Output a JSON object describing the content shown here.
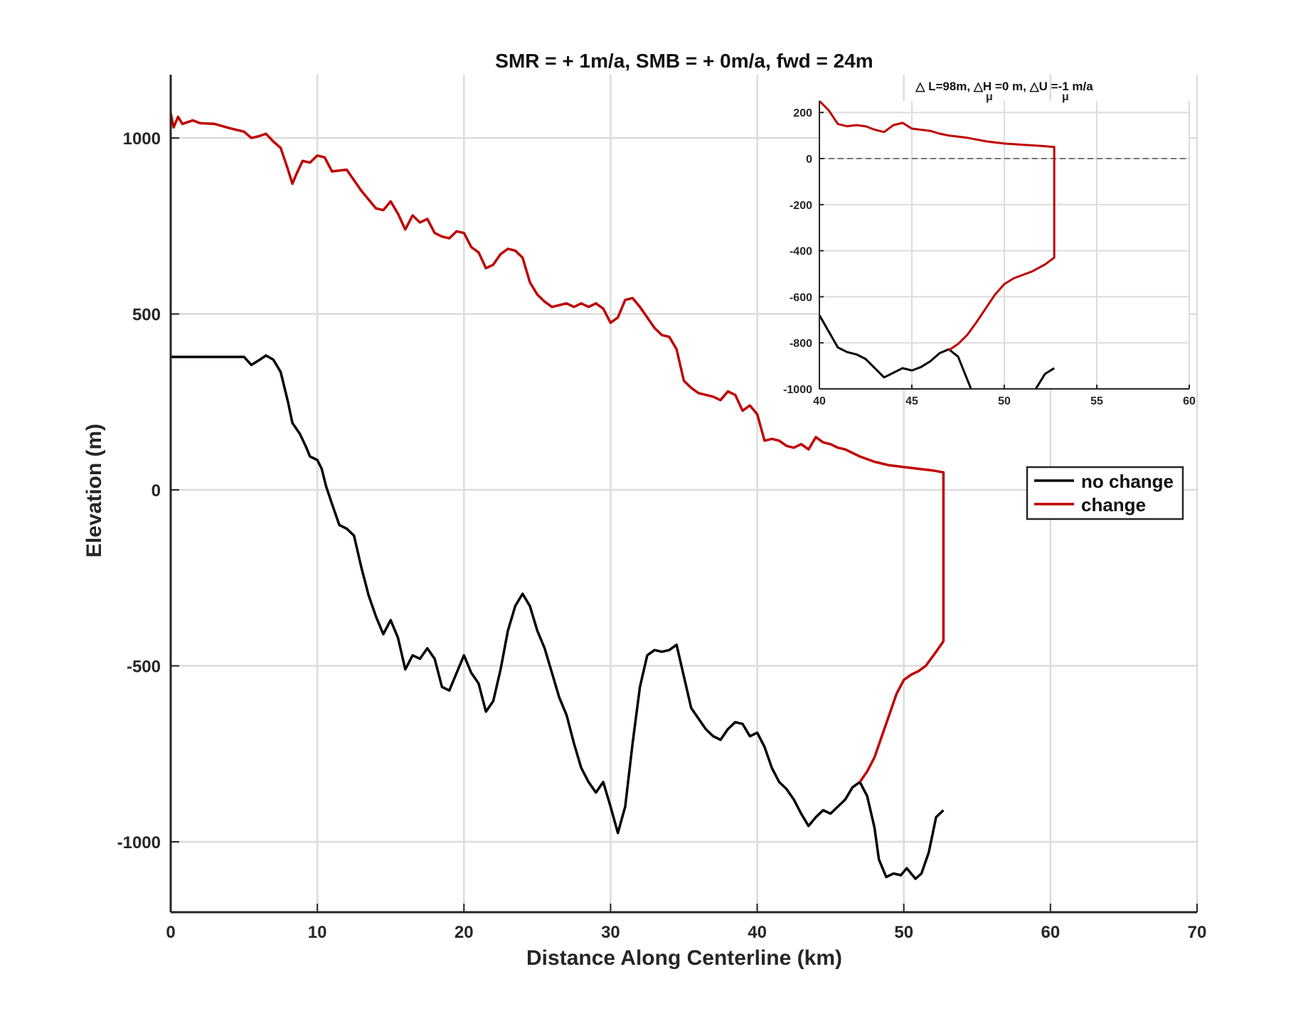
{
  "chart_data": [
    {
      "type": "line",
      "title": "SMR = + 1m/a, SMB = + 0m/a, fwd = 24m",
      "xlabel": "Distance Along Centerline (km)",
      "ylabel": "Elevation (m)",
      "xlim": [
        0,
        70
      ],
      "ylim": [
        -1200,
        1180
      ],
      "xticks": [
        0,
        10,
        20,
        30,
        40,
        50,
        60,
        70
      ],
      "yticks": [
        -1000,
        -500,
        0,
        500,
        1000
      ],
      "grid": true,
      "legend": {
        "placement": "right",
        "entries": [
          "no change",
          "change"
        ]
      },
      "colors": {
        "no_change": "#000000",
        "change": "#c00000"
      },
      "series": [
        {
          "name": "no change",
          "color": "#000000",
          "points": [
            [
              0,
              378
            ],
            [
              5,
              378
            ],
            [
              5.5,
              355
            ],
            [
              6,
              368
            ],
            [
              6.5,
              382
            ],
            [
              7,
              370
            ],
            [
              7.5,
              335
            ],
            [
              8,
              250
            ],
            [
              8.3,
              190
            ],
            [
              8.8,
              160
            ],
            [
              9.2,
              125
            ],
            [
              9.5,
              95
            ],
            [
              10,
              85
            ],
            [
              10.3,
              60
            ],
            [
              10.6,
              10
            ],
            [
              11,
              -40
            ],
            [
              11.5,
              -100
            ],
            [
              12,
              -110
            ],
            [
              12.5,
              -130
            ],
            [
              13,
              -220
            ],
            [
              13.5,
              -300
            ],
            [
              14,
              -360
            ],
            [
              14.5,
              -410
            ],
            [
              15,
              -370
            ],
            [
              15.5,
              -420
            ],
            [
              16,
              -510
            ],
            [
              16.5,
              -470
            ],
            [
              17,
              -480
            ],
            [
              17.5,
              -450
            ],
            [
              18,
              -480
            ],
            [
              18.5,
              -560
            ],
            [
              19,
              -570
            ],
            [
              19.5,
              -520
            ],
            [
              20,
              -470
            ],
            [
              20.5,
              -520
            ],
            [
              21,
              -550
            ],
            [
              21.5,
              -630
            ],
            [
              22,
              -600
            ],
            [
              22.5,
              -510
            ],
            [
              23,
              -400
            ],
            [
              23.5,
              -330
            ],
            [
              24,
              -295
            ],
            [
              24.5,
              -330
            ],
            [
              25,
              -400
            ],
            [
              25.5,
              -450
            ],
            [
              26,
              -520
            ],
            [
              26.5,
              -590
            ],
            [
              27,
              -640
            ],
            [
              27.5,
              -720
            ],
            [
              28,
              -790
            ],
            [
              28.5,
              -830
            ],
            [
              29,
              -860
            ],
            [
              29.5,
              -830
            ],
            [
              30,
              -900
            ],
            [
              30.5,
              -975
            ],
            [
              31,
              -900
            ],
            [
              31.5,
              -720
            ],
            [
              32,
              -560
            ],
            [
              32.5,
              -470
            ],
            [
              33,
              -455
            ],
            [
              33.5,
              -460
            ],
            [
              34,
              -455
            ],
            [
              34.5,
              -440
            ],
            [
              35,
              -530
            ],
            [
              35.5,
              -620
            ],
            [
              36,
              -650
            ],
            [
              36.5,
              -680
            ],
            [
              37,
              -700
            ],
            [
              37.5,
              -710
            ],
            [
              38,
              -680
            ],
            [
              38.5,
              -660
            ],
            [
              39,
              -665
            ],
            [
              39.5,
              -700
            ],
            [
              40,
              -690
            ],
            [
              40.5,
              -730
            ],
            [
              41,
              -790
            ],
            [
              41.5,
              -830
            ],
            [
              42,
              -850
            ],
            [
              42.5,
              -880
            ],
            [
              43,
              -920
            ],
            [
              43.5,
              -955
            ],
            [
              44,
              -930
            ],
            [
              44.5,
              -910
            ],
            [
              45,
              -920
            ],
            [
              45.5,
              -900
            ],
            [
              46,
              -880
            ],
            [
              46.5,
              -845
            ],
            [
              47,
              -830
            ],
            [
              47.5,
              -870
            ],
            [
              48,
              -960
            ],
            [
              48.3,
              -1050
            ],
            [
              48.8,
              -1100
            ],
            [
              49.3,
              -1090
            ],
            [
              49.8,
              -1095
            ],
            [
              50.2,
              -1075
            ],
            [
              50.5,
              -1090
            ],
            [
              50.8,
              -1105
            ],
            [
              51.2,
              -1090
            ],
            [
              51.7,
              -1030
            ],
            [
              52.2,
              -930
            ],
            [
              52.7,
              -910
            ]
          ]
        },
        {
          "name": "change",
          "color": "#c00000",
          "points": [
            [
              0,
              1070
            ],
            [
              0.2,
              1030
            ],
            [
              0.5,
              1060
            ],
            [
              0.8,
              1040
            ],
            [
              1.5,
              1050
            ],
            [
              2,
              1042
            ],
            [
              3,
              1040
            ],
            [
              4,
              1028
            ],
            [
              5,
              1018
            ],
            [
              5.5,
              1000
            ],
            [
              6,
              1005
            ],
            [
              6.5,
              1012
            ],
            [
              7,
              990
            ],
            [
              7.5,
              972
            ],
            [
              8,
              910
            ],
            [
              8.3,
              870
            ],
            [
              8.6,
              900
            ],
            [
              9,
              935
            ],
            [
              9.5,
              930
            ],
            [
              10,
              950
            ],
            [
              10.5,
              945
            ],
            [
              11,
              905
            ],
            [
              12,
              910
            ],
            [
              13,
              850
            ],
            [
              14,
              800
            ],
            [
              14.5,
              795
            ],
            [
              15,
              820
            ],
            [
              15.5,
              785
            ],
            [
              16,
              740
            ],
            [
              16.5,
              780
            ],
            [
              17,
              760
            ],
            [
              17.5,
              770
            ],
            [
              18,
              730
            ],
            [
              18.5,
              720
            ],
            [
              19,
              715
            ],
            [
              19.5,
              735
            ],
            [
              20,
              730
            ],
            [
              20.5,
              690
            ],
            [
              21,
              675
            ],
            [
              21.5,
              630
            ],
            [
              22,
              640
            ],
            [
              22.5,
              670
            ],
            [
              23,
              685
            ],
            [
              23.5,
              680
            ],
            [
              24,
              660
            ],
            [
              24.5,
              590
            ],
            [
              25,
              555
            ],
            [
              25.5,
              535
            ],
            [
              26,
              520
            ],
            [
              26.5,
              525
            ],
            [
              27,
              530
            ],
            [
              27.5,
              520
            ],
            [
              28,
              530
            ],
            [
              28.5,
              520
            ],
            [
              29,
              530
            ],
            [
              29.5,
              515
            ],
            [
              30,
              475
            ],
            [
              30.5,
              490
            ],
            [
              31,
              540
            ],
            [
              31.5,
              545
            ],
            [
              32,
              520
            ],
            [
              32.5,
              490
            ],
            [
              33,
              460
            ],
            [
              33.5,
              440
            ],
            [
              34,
              435
            ],
            [
              34.5,
              400
            ],
            [
              35,
              310
            ],
            [
              35.5,
              290
            ],
            [
              36,
              275
            ],
            [
              36.5,
              270
            ],
            [
              37,
              265
            ],
            [
              37.5,
              255
            ],
            [
              38,
              280
            ],
            [
              38.5,
              270
            ],
            [
              39,
              225
            ],
            [
              39.5,
              240
            ],
            [
              40,
              215
            ],
            [
              40.5,
              140
            ],
            [
              41,
              145
            ],
            [
              41.5,
              140
            ],
            [
              42,
              125
            ],
            [
              42.5,
              120
            ],
            [
              43,
              130
            ],
            [
              43.5,
              115
            ],
            [
              44,
              150
            ],
            [
              44.5,
              135
            ],
            [
              45,
              130
            ],
            [
              45.5,
              120
            ],
            [
              46,
              115
            ],
            [
              46.5,
              105
            ],
            [
              47,
              95
            ],
            [
              48,
              80
            ],
            [
              49,
              70
            ],
            [
              50,
              65
            ],
            [
              51,
              60
            ],
            [
              52,
              55
            ],
            [
              52.7,
              50
            ],
            [
              52.7,
              -430
            ],
            [
              52.2,
              -460
            ],
            [
              51.5,
              -500
            ],
            [
              51,
              -515
            ],
            [
              50.5,
              -525
            ],
            [
              50,
              -540
            ],
            [
              49.5,
              -580
            ],
            [
              49,
              -640
            ],
            [
              48.5,
              -700
            ],
            [
              48,
              -760
            ],
            [
              47.5,
              -800
            ],
            [
              47,
              -830
            ]
          ]
        }
      ]
    },
    {
      "type": "line",
      "title": "△ L=98m, △H  =0 m, △U  =-1 m/a",
      "subscript": "μ",
      "placement": "top-right inset",
      "xlim": [
        40,
        60
      ],
      "ylim": [
        -1000,
        250
      ],
      "xticks": [
        40,
        45,
        50,
        55,
        60
      ],
      "yticks": [
        -1000,
        -800,
        -600,
        -400,
        -200,
        0,
        200
      ],
      "grid": true,
      "reference_line": 0,
      "series": [
        {
          "name": "no change",
          "color": "#000000",
          "points": [
            [
              40,
              -680
            ],
            [
              40.5,
              -750
            ],
            [
              41,
              -820
            ],
            [
              41.5,
              -840
            ],
            [
              42,
              -850
            ],
            [
              42.5,
              -870
            ],
            [
              43,
              -910
            ],
            [
              43.5,
              -950
            ],
            [
              44,
              -930
            ],
            [
              44.5,
              -910
            ],
            [
              45,
              -920
            ],
            [
              45.5,
              -905
            ],
            [
              46,
              -880
            ],
            [
              46.5,
              -845
            ],
            [
              47,
              -828
            ],
            [
              47.5,
              -860
            ],
            [
              48,
              -960
            ],
            [
              48.2,
              -1000
            ]
          ]
        },
        {
          "color": "#000000",
          "points": [
            [
              51.7,
              -1000
            ],
            [
              52.2,
              -935
            ],
            [
              52.7,
              -910
            ]
          ]
        },
        {
          "name": "change",
          "color": "#c00000",
          "points": [
            [
              40,
              250
            ],
            [
              40.5,
              210
            ],
            [
              41,
              150
            ],
            [
              41.5,
              140
            ],
            [
              42,
              145
            ],
            [
              42.5,
              140
            ],
            [
              43,
              125
            ],
            [
              43.5,
              115
            ],
            [
              44,
              145
            ],
            [
              44.5,
              155
            ],
            [
              45,
              130
            ],
            [
              45.5,
              125
            ],
            [
              46,
              120
            ],
            [
              46.5,
              108
            ],
            [
              47,
              100
            ],
            [
              48,
              90
            ],
            [
              49,
              75
            ],
            [
              50,
              65
            ],
            [
              51,
              60
            ],
            [
              52,
              55
            ],
            [
              52.7,
              50
            ],
            [
              52.7,
              -430
            ],
            [
              52.2,
              -460
            ],
            [
              51.5,
              -490
            ],
            [
              51,
              -505
            ],
            [
              50.5,
              -520
            ],
            [
              50,
              -545
            ],
            [
              49.5,
              -590
            ],
            [
              49,
              -650
            ],
            [
              48.5,
              -710
            ],
            [
              48,
              -765
            ],
            [
              47.5,
              -805
            ],
            [
              47,
              -832
            ]
          ]
        }
      ]
    }
  ]
}
